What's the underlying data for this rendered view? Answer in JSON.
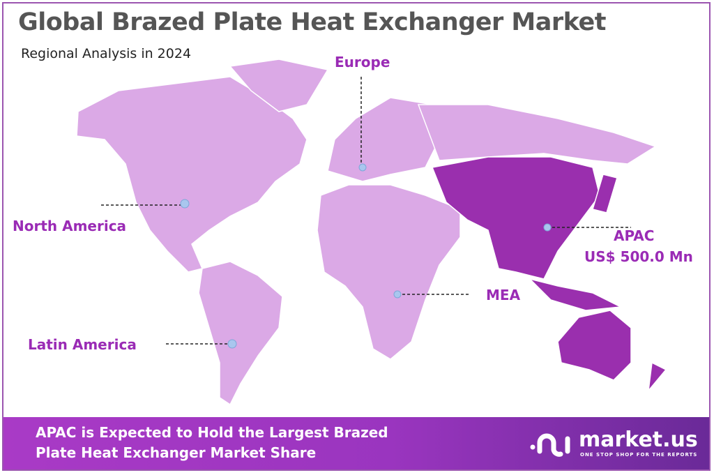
{
  "title": "Global Brazed Plate Heat Exchanger Market",
  "subtitle": "Regional Analysis in 2024",
  "colors": {
    "map_base": "#dba9e6",
    "apac_highlight": "#9a2fae",
    "label": "#9a2bb5",
    "marker": "#a9c6ee",
    "banner_start": "#a93ac6",
    "banner_end": "#6a2a98"
  },
  "regions": [
    {
      "name": "North America",
      "highlighted": false
    },
    {
      "name": "Europe",
      "highlighted": false
    },
    {
      "name": "APAC",
      "value": "US$ 500.0 Mn",
      "highlighted": true
    },
    {
      "name": "MEA",
      "highlighted": false
    },
    {
      "name": "Latin America",
      "highlighted": false
    }
  ],
  "banner": {
    "line1": "APAC is Expected to Hold the Largest Brazed",
    "line2": "Plate Heat Exchanger Market Share"
  },
  "logo": {
    "name": "market.us",
    "tagline": "ONE STOP SHOP FOR THE REPORTS"
  }
}
